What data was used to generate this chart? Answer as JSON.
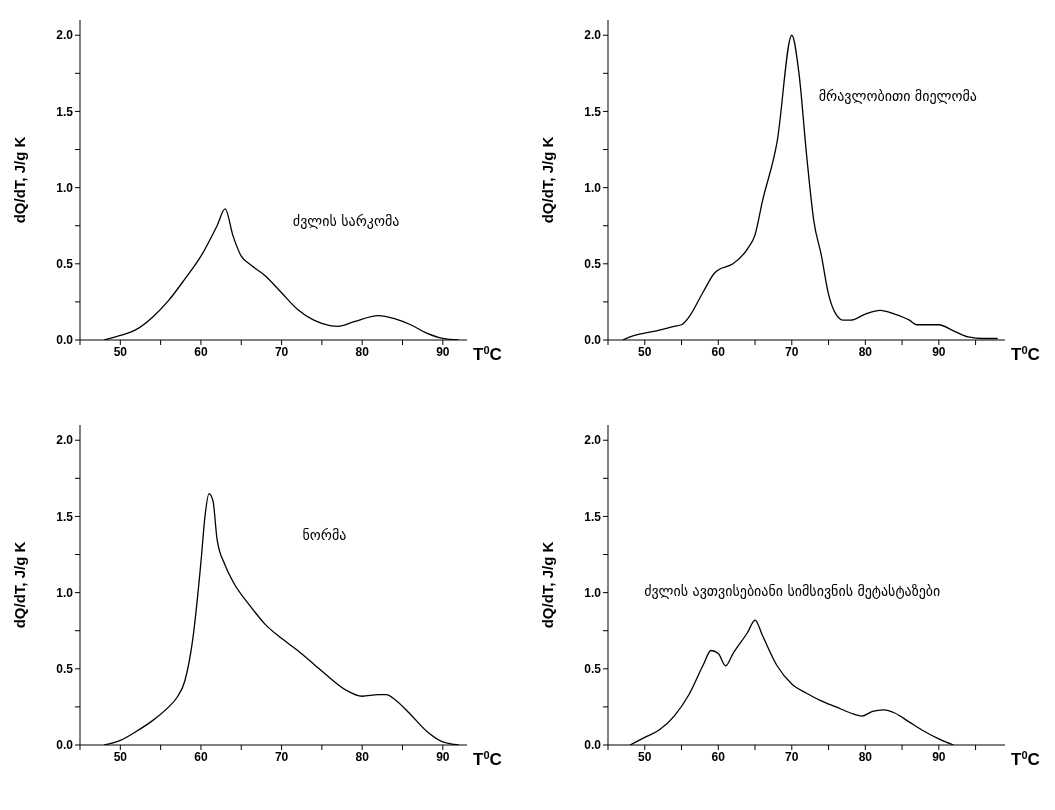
{
  "chart_data": [
    {
      "type": "line",
      "xlabel": "T$^{0}$C",
      "ylabel": "dQ/dT, J/g K",
      "xlim": [
        45,
        93
      ],
      "ylim": [
        0,
        2.1
      ],
      "xticks": [
        {
          "value": 45,
          "label": null
        },
        50,
        {
          "value": 55,
          "label": null
        },
        60,
        {
          "value": 65,
          "label": null
        },
        70,
        {
          "value": 75,
          "label": null
        },
        80,
        {
          "value": 85,
          "label": null
        },
        90
      ],
      "yticks": [
        {
          "value": 0,
          "label": "0.0"
        },
        {
          "value": 0.25,
          "label": null
        },
        {
          "value": 0.5,
          "label": "0.5"
        },
        {
          "value": 0.75,
          "label": null
        },
        {
          "value": 1,
          "label": "1.0"
        },
        {
          "value": 1.25,
          "label": null
        },
        {
          "value": 1.5,
          "label": "1.5"
        },
        {
          "value": 1.75,
          "label": null
        },
        {
          "value": 2,
          "label": "2.0"
        }
      ],
      "grid": false,
      "marker": "none",
      "line_style": "solid",
      "annotations": [
        "ძვლის სარკომა"
      ],
      "series": [
        {
          "color": "#000000",
          "x": [
            48,
            50,
            52,
            54,
            56,
            58,
            60,
            62,
            63,
            64,
            65,
            66,
            68,
            70,
            72,
            74,
            76,
            77,
            79,
            82,
            84,
            86,
            88,
            90,
            92
          ],
          "values": [
            0,
            0.03,
            0.07,
            0.15,
            0.26,
            0.4,
            0.55,
            0.75,
            0.86,
            0.68,
            0.55,
            0.5,
            0.42,
            0.31,
            0.2,
            0.13,
            0.095,
            0.09,
            0.12,
            0.16,
            0.14,
            0.1,
            0.045,
            0.01,
            0
          ]
        }
      ]
    },
    {
      "type": "line",
      "xlabel": "T$^{0}$C",
      "ylabel": "dQ/dT, J/g K",
      "xlim": [
        45,
        99
      ],
      "ylim": [
        0,
        2.1
      ],
      "xticks": [
        {
          "value": 45,
          "label": null
        },
        50,
        {
          "value": 55,
          "label": null
        },
        60,
        {
          "value": 65,
          "label": null
        },
        70,
        {
          "value": 75,
          "label": null
        },
        80,
        {
          "value": 85,
          "label": null
        },
        90,
        {
          "value": 95,
          "label": null
        }
      ],
      "yticks": [
        {
          "value": 0,
          "label": "0.0"
        },
        {
          "value": 0.25,
          "label": null
        },
        {
          "value": 0.5,
          "label": "0.5"
        },
        {
          "value": 0.75,
          "label": null
        },
        {
          "value": 1,
          "label": "1.0"
        },
        {
          "value": 1.25,
          "label": null
        },
        {
          "value": 1.5,
          "label": "1.5"
        },
        {
          "value": 1.75,
          "label": null
        },
        {
          "value": 2,
          "label": "2.0"
        }
      ],
      "grid": false,
      "marker": "none",
      "line_style": "solid",
      "annotations": [
        "მრავლობითი მიელომა"
      ],
      "series": [
        {
          "color": "#000000",
          "x": [
            47,
            48,
            49,
            50,
            52,
            54,
            55,
            56,
            58,
            59.5,
            60,
            62,
            64,
            65,
            66,
            68,
            70,
            71,
            72,
            73,
            74,
            75,
            76,
            77,
            78,
            80,
            82,
            84,
            86,
            87,
            90,
            92,
            94,
            96,
            98
          ],
          "values": [
            0,
            0.02,
            0.035,
            0.045,
            0.065,
            0.09,
            0.1,
            0.15,
            0.32,
            0.44,
            0.46,
            0.5,
            0.6,
            0.69,
            0.91,
            1.3,
            2.0,
            1.74,
            1.22,
            0.78,
            0.56,
            0.3,
            0.17,
            0.13,
            0.13,
            0.17,
            0.195,
            0.17,
            0.13,
            0.1,
            0.1,
            0.06,
            0.02,
            0.01,
            0.01
          ]
        }
      ]
    },
    {
      "type": "line",
      "xlabel": "T$^{0}$C",
      "ylabel": "dQ/dT, J/g K",
      "xlim": [
        45,
        93
      ],
      "ylim": [
        0,
        2.1
      ],
      "xticks": [
        {
          "value": 45,
          "label": null
        },
        50,
        {
          "value": 55,
          "label": null
        },
        60,
        {
          "value": 65,
          "label": null
        },
        70,
        {
          "value": 75,
          "label": null
        },
        80,
        {
          "value": 85,
          "label": null
        },
        90
      ],
      "yticks": [
        {
          "value": 0,
          "label": "0.0"
        },
        {
          "value": 0.25,
          "label": null
        },
        {
          "value": 0.5,
          "label": "0.5"
        },
        {
          "value": 0.75,
          "label": null
        },
        {
          "value": 1,
          "label": "1.0"
        },
        {
          "value": 1.25,
          "label": null
        },
        {
          "value": 1.5,
          "label": "1.5"
        },
        {
          "value": 1.75,
          "label": null
        },
        {
          "value": 2,
          "label": "2.0"
        }
      ],
      "grid": false,
      "marker": "none",
      "line_style": "solid",
      "annotations": [
        "ნორმა"
      ],
      "series": [
        {
          "color": "#000000",
          "x": [
            48,
            50,
            52,
            54,
            56,
            57,
            58,
            59,
            60,
            60.5,
            61,
            61.5,
            62,
            63,
            64,
            66,
            68,
            70,
            72,
            74,
            76,
            78,
            80,
            82,
            83,
            84,
            86,
            88,
            90,
            92
          ],
          "values": [
            0,
            0.03,
            0.09,
            0.16,
            0.25,
            0.31,
            0.42,
            0.7,
            1.2,
            1.5,
            1.65,
            1.6,
            1.35,
            1.18,
            1.07,
            0.92,
            0.79,
            0.7,
            0.62,
            0.53,
            0.44,
            0.36,
            0.32,
            0.33,
            0.33,
            0.3,
            0.2,
            0.09,
            0.02,
            0
          ]
        }
      ]
    },
    {
      "type": "line",
      "xlabel": "T$^{0}$C",
      "ylabel": "dQ/dT, J/g K",
      "xlim": [
        45,
        99
      ],
      "ylim": [
        0,
        2.1
      ],
      "xticks": [
        {
          "value": 45,
          "label": null
        },
        50,
        {
          "value": 55,
          "label": null
        },
        60,
        {
          "value": 65,
          "label": null
        },
        70,
        {
          "value": 75,
          "label": null
        },
        80,
        {
          "value": 85,
          "label": null
        },
        90,
        {
          "value": 95,
          "label": null
        }
      ],
      "yticks": [
        {
          "value": 0,
          "label": "0.0"
        },
        {
          "value": 0.25,
          "label": null
        },
        {
          "value": 0.5,
          "label": "0.5"
        },
        {
          "value": 0.75,
          "label": null
        },
        {
          "value": 1,
          "label": "1.0"
        },
        {
          "value": 1.25,
          "label": null
        },
        {
          "value": 1.5,
          "label": "1.5"
        },
        {
          "value": 1.75,
          "label": null
        },
        {
          "value": 2,
          "label": "2.0"
        }
      ],
      "grid": false,
      "marker": "none",
      "line_style": "solid",
      "annotations": [
        "ძვლის ავთვისებიანი სიმსივნის მეტასტაზები"
      ],
      "series": [
        {
          "color": "#000000",
          "x": [
            48,
            50,
            52,
            54,
            56,
            58,
            59,
            60,
            61,
            62,
            64,
            65,
            66,
            68,
            70,
            72,
            74,
            76,
            78,
            79.5,
            81,
            82.5,
            84,
            86,
            88,
            90,
            92
          ],
          "values": [
            0,
            0.05,
            0.1,
            0.19,
            0.33,
            0.53,
            0.62,
            0.6,
            0.52,
            0.6,
            0.74,
            0.82,
            0.72,
            0.52,
            0.4,
            0.34,
            0.29,
            0.25,
            0.21,
            0.19,
            0.22,
            0.23,
            0.21,
            0.15,
            0.09,
            0.04,
            0
          ]
        }
      ]
    }
  ]
}
